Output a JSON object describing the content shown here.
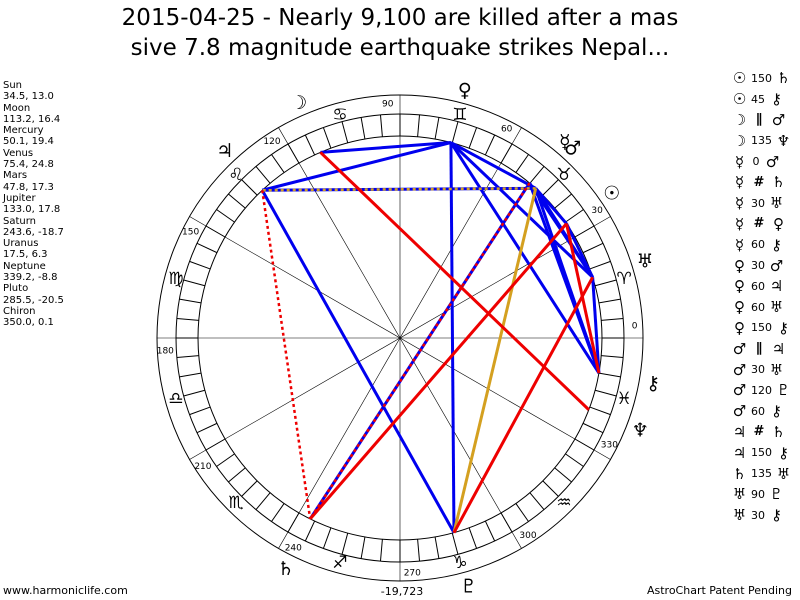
{
  "title_line1": "2015-04-25 - Nearly 9,100 are killed after a mas",
  "title_line2": "sive 7.8 magnitude earthquake strikes Nepal...",
  "planets": [
    {
      "name": "Sun",
      "pos": "34.5, 13.0",
      "lon": 34.5,
      "glyph": "☉",
      "color": "#000000"
    },
    {
      "name": "Moon",
      "pos": "113.2, 16.4",
      "lon": 113.2,
      "glyph": "☽",
      "color": "#000000"
    },
    {
      "name": "Mercury",
      "pos": "50.1, 19.4",
      "lon": 50.1,
      "glyph": "☿",
      "color": "#000000"
    },
    {
      "name": "Venus",
      "pos": "75.4, 24.8",
      "lon": 75.4,
      "glyph": "♀",
      "color": "#000000"
    },
    {
      "name": "Mars",
      "pos": "47.8, 17.3",
      "lon": 47.8,
      "glyph": "♂",
      "color": "#000000"
    },
    {
      "name": "Jupiter",
      "pos": "133.0, 17.8",
      "lon": 133.0,
      "glyph": "♃",
      "color": "#000000"
    },
    {
      "name": "Saturn",
      "pos": "243.6, -18.7",
      "lon": 243.6,
      "glyph": "♄",
      "color": "#000000"
    },
    {
      "name": "Uranus",
      "pos": "17.5, 6.3",
      "lon": 17.5,
      "glyph": "♅",
      "color": "#000000"
    },
    {
      "name": "Neptune",
      "pos": "339.2, -8.8",
      "lon": 339.2,
      "glyph": "♆",
      "color": "#000000"
    },
    {
      "name": "Pluto",
      "pos": "285.5, -20.5",
      "lon": 285.5,
      "glyph": "♇",
      "color": "#000000"
    },
    {
      "name": "Chiron",
      "pos": "350.0, 0.1",
      "lon": 350.0,
      "glyph": "⚷",
      "color": "#000000"
    }
  ],
  "aspects": [
    {
      "p1": "☉",
      "sym": "",
      "orb": "150",
      "p2": "♄"
    },
    {
      "p1": "☉",
      "sym": "",
      "orb": "45",
      "p2": "⚷"
    },
    {
      "p1": "☽",
      "sym": "∥",
      "orb": "",
      "p2": "♂"
    },
    {
      "p1": "☽",
      "sym": "",
      "orb": "135",
      "p2": "♆"
    },
    {
      "p1": "☿",
      "sym": "",
      "orb": "0",
      "p2": "♂"
    },
    {
      "p1": "☿",
      "sym": "#",
      "orb": "",
      "p2": "♄"
    },
    {
      "p1": "☿",
      "sym": "",
      "orb": "30",
      "p2": "♅"
    },
    {
      "p1": "☿",
      "sym": "#",
      "orb": "",
      "p2": "♀"
    },
    {
      "p1": "☿",
      "sym": "",
      "orb": "60",
      "p2": "⚷"
    },
    {
      "p1": "♀",
      "sym": "",
      "orb": "30",
      "p2": "♂"
    },
    {
      "p1": "♀",
      "sym": "",
      "orb": "60",
      "p2": "♃"
    },
    {
      "p1": "♀",
      "sym": "",
      "orb": "60",
      "p2": "♅"
    },
    {
      "p1": "♀",
      "sym": "",
      "orb": "150",
      "p2": "⚷"
    },
    {
      "p1": "♂",
      "sym": "∥",
      "orb": "",
      "p2": "♃"
    },
    {
      "p1": "♂",
      "sym": "",
      "orb": "30",
      "p2": "♅"
    },
    {
      "p1": "♂",
      "sym": "",
      "orb": "120",
      "p2": "♇"
    },
    {
      "p1": "♂",
      "sym": "",
      "orb": "60",
      "p2": "⚷"
    },
    {
      "p1": "♃",
      "sym": "#",
      "orb": "",
      "p2": "♄"
    },
    {
      "p1": "♃",
      "sym": "",
      "orb": "150",
      "p2": "⚷"
    },
    {
      "p1": "♄",
      "sym": "",
      "orb": "135",
      "p2": "♅"
    },
    {
      "p1": "♅",
      "sym": "",
      "orb": "90",
      "p2": "♇"
    },
    {
      "p1": "♅",
      "sym": "",
      "orb": "30",
      "p2": "⚷"
    }
  ],
  "wheel": {
    "degree_labels": [
      "0",
      "30",
      "60",
      "90",
      "120",
      "150",
      "180",
      "210",
      "240",
      "270",
      "300",
      "330"
    ],
    "bottom_value": "-19,723",
    "signs": [
      "♈",
      "♉",
      "♊",
      "♋",
      "♌",
      "♍",
      "♎",
      "♏",
      "♐",
      "♑",
      "♒",
      "♓"
    ]
  },
  "aspect_lines": [
    {
      "a": 75.4,
      "b": 113.2,
      "color": "#0000ee",
      "dash": false
    },
    {
      "a": 75.4,
      "b": 133.0,
      "color": "#0000ee",
      "dash": false
    },
    {
      "a": 75.4,
      "b": 47.8,
      "color": "#0000ee",
      "dash": false
    },
    {
      "a": 75.4,
      "b": 17.5,
      "color": "#0000ee",
      "dash": false
    },
    {
      "a": 75.4,
      "b": 350.0,
      "color": "#0000ee",
      "dash": false
    },
    {
      "a": 75.4,
      "b": 285.5,
      "color": "#0000ee",
      "dash": false
    },
    {
      "a": 47.8,
      "b": 133.0,
      "color": "#0000ee",
      "dash": false
    },
    {
      "a": 47.8,
      "b": 17.5,
      "color": "#0000ee",
      "dash": false
    },
    {
      "a": 47.8,
      "b": 34.5,
      "color": "#0000ee",
      "dash": false
    },
    {
      "a": 50.1,
      "b": 17.5,
      "color": "#0000ee",
      "dash": false
    },
    {
      "a": 50.1,
      "b": 350.0,
      "color": "#0000ee",
      "dash": false
    },
    {
      "a": 50.1,
      "b": 243.6,
      "color": "#0000ee",
      "dash": false
    },
    {
      "a": 47.8,
      "b": 350.0,
      "color": "#0000ee",
      "dash": false
    },
    {
      "a": 34.5,
      "b": 17.5,
      "color": "#0000ee",
      "dash": false
    },
    {
      "a": 17.5,
      "b": 350.0,
      "color": "#0000ee",
      "dash": false
    },
    {
      "a": 133.0,
      "b": 285.5,
      "color": "#0000ee",
      "dash": false
    },
    {
      "a": 47.8,
      "b": 285.5,
      "color": "#d4a020",
      "dash": false
    },
    {
      "a": 47.8,
      "b": 133.0,
      "color": "#d4a020",
      "dash": true
    },
    {
      "a": 113.2,
      "b": 339.2,
      "color": "#ee0000",
      "dash": false
    },
    {
      "a": 34.5,
      "b": 243.6,
      "color": "#ee0000",
      "dash": false
    },
    {
      "a": 17.5,
      "b": 285.5,
      "color": "#ee0000",
      "dash": false
    },
    {
      "a": 34.5,
      "b": 350.0,
      "color": "#ee0000",
      "dash": false
    },
    {
      "a": 50.1,
      "b": 243.6,
      "color": "#ee0000",
      "dash": true
    },
    {
      "a": 133.0,
      "b": 243.6,
      "color": "#ee0000",
      "dash": true
    }
  ],
  "footer_left": "www.harmoniclife.com",
  "footer_right": "AstroChart Patent Pending"
}
